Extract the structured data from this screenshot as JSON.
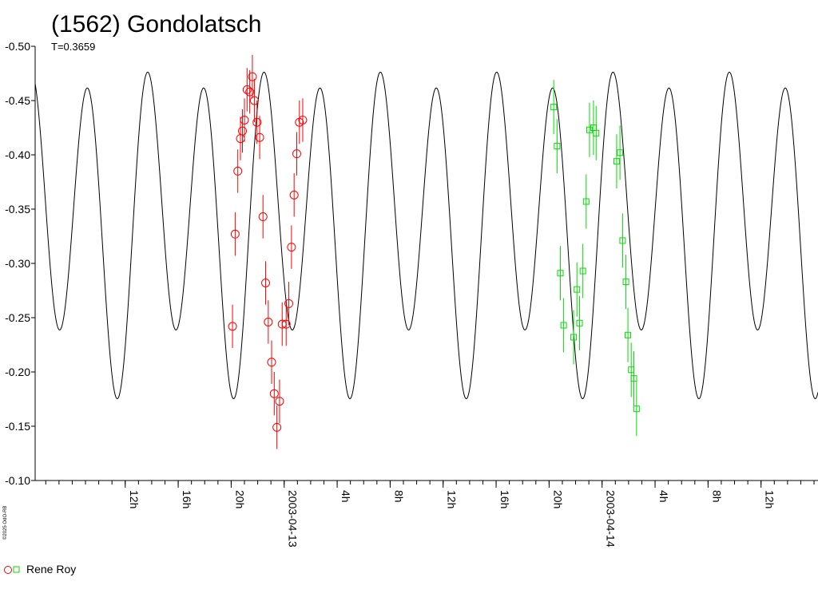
{
  "chart_data": {
    "type": "scatter",
    "title": "(1562) Gondolatsch",
    "subtitle": "T=0.3659",
    "side_label": "©2025 OdO-RB",
    "ylim": [
      -0.5,
      -0.1
    ],
    "y_ticks": [
      "-0.50",
      "-0.45",
      "-0.40",
      "-0.35",
      "-0.30",
      "-0.25",
      "-0.20",
      "-0.15",
      "-0.10"
    ],
    "y_tick_values": [
      -0.5,
      -0.45,
      -0.4,
      -0.35,
      -0.3,
      -0.25,
      -0.2,
      -0.15,
      -0.1
    ],
    "x_range_hours": [
      5.2,
      64.3
    ],
    "x_ticks": [
      {
        "h": 12,
        "label": "12h"
      },
      {
        "h": 16,
        "label": "16h"
      },
      {
        "h": 20,
        "label": "20h"
      },
      {
        "h": 24,
        "label": "2003-04-13"
      },
      {
        "h": 28,
        "label": "4h"
      },
      {
        "h": 32,
        "label": "8h"
      },
      {
        "h": 36,
        "label": "12h"
      },
      {
        "h": 40,
        "label": "16h"
      },
      {
        "h": 44,
        "label": "20h"
      },
      {
        "h": 48,
        "label": "2003-04-14"
      },
      {
        "h": 52,
        "label": "4h"
      },
      {
        "h": 56,
        "label": "8h"
      },
      {
        "h": 60,
        "label": "12h"
      }
    ],
    "period_hours": 8.782,
    "model": {
      "name": "fit",
      "mean": -0.3375,
      "a1": 0.0325,
      "phi1": -1.66,
      "a2": 0.1305,
      "phi2": 2.51,
      "color": "#000000"
    },
    "series": [
      {
        "name": "Rene Roy",
        "marker": "circle",
        "color": "#ff0000",
        "points": [
          {
            "x": 20.1,
            "y": -0.242,
            "e": 0.02
          },
          {
            "x": 20.3,
            "y": -0.327,
            "e": 0.02
          },
          {
            "x": 20.5,
            "y": -0.385,
            "e": 0.02
          },
          {
            "x": 20.7,
            "y": -0.415,
            "e": 0.02
          },
          {
            "x": 20.85,
            "y": -0.422,
            "e": 0.02
          },
          {
            "x": 21.0,
            "y": -0.432,
            "e": 0.02
          },
          {
            "x": 21.2,
            "y": -0.46,
            "e": 0.02
          },
          {
            "x": 21.4,
            "y": -0.458,
            "e": 0.02
          },
          {
            "x": 21.6,
            "y": -0.472,
            "e": 0.02
          },
          {
            "x": 21.75,
            "y": -0.45,
            "e": 0.02
          },
          {
            "x": 21.95,
            "y": -0.43,
            "e": 0.02
          },
          {
            "x": 22.15,
            "y": -0.416,
            "e": 0.02
          },
          {
            "x": 22.4,
            "y": -0.343,
            "e": 0.02
          },
          {
            "x": 22.6,
            "y": -0.282,
            "e": 0.02
          },
          {
            "x": 22.8,
            "y": -0.246,
            "e": 0.02
          },
          {
            "x": 23.05,
            "y": -0.209,
            "e": 0.02
          },
          {
            "x": 23.25,
            "y": -0.18,
            "e": 0.02
          },
          {
            "x": 23.45,
            "y": -0.149,
            "e": 0.02
          },
          {
            "x": 23.65,
            "y": -0.173,
            "e": 0.02
          },
          {
            "x": 23.85,
            "y": -0.244,
            "e": 0.02
          },
          {
            "x": 24.15,
            "y": -0.244,
            "e": 0.02
          },
          {
            "x": 24.35,
            "y": -0.263,
            "e": 0.02
          },
          {
            "x": 24.55,
            "y": -0.315,
            "e": 0.02
          },
          {
            "x": 24.75,
            "y": -0.363,
            "e": 0.02
          },
          {
            "x": 24.95,
            "y": -0.401,
            "e": 0.02
          },
          {
            "x": 25.15,
            "y": -0.43,
            "e": 0.02
          },
          {
            "x": 25.4,
            "y": -0.432,
            "e": 0.02
          }
        ]
      },
      {
        "name": "",
        "marker": "square",
        "color": "#00dd00",
        "points": [
          {
            "x": 44.35,
            "y": -0.444,
            "e": 0.025
          },
          {
            "x": 44.6,
            "y": -0.408,
            "e": 0.025
          },
          {
            "x": 44.85,
            "y": -0.291,
            "e": 0.025
          },
          {
            "x": 45.1,
            "y": -0.243,
            "e": 0.025
          },
          {
            "x": 45.85,
            "y": -0.232,
            "e": 0.025
          },
          {
            "x": 46.1,
            "y": -0.276,
            "e": 0.025
          },
          {
            "x": 46.3,
            "y": -0.245,
            "e": 0.025
          },
          {
            "x": 46.55,
            "y": -0.293,
            "e": 0.025
          },
          {
            "x": 46.8,
            "y": -0.357,
            "e": 0.025
          },
          {
            "x": 47.05,
            "y": -0.423,
            "e": 0.025
          },
          {
            "x": 47.35,
            "y": -0.425,
            "e": 0.025
          },
          {
            "x": 47.55,
            "y": -0.42,
            "e": 0.025
          },
          {
            "x": 49.1,
            "y": -0.394,
            "e": 0.025
          },
          {
            "x": 49.35,
            "y": -0.402,
            "e": 0.025
          },
          {
            "x": 49.55,
            "y": -0.321,
            "e": 0.025
          },
          {
            "x": 49.8,
            "y": -0.283,
            "e": 0.025
          },
          {
            "x": 49.95,
            "y": -0.234,
            "e": 0.025
          },
          {
            "x": 50.2,
            "y": -0.202,
            "e": 0.025
          },
          {
            "x": 50.4,
            "y": -0.194,
            "e": 0.025
          },
          {
            "x": 50.6,
            "y": -0.166,
            "e": 0.025
          }
        ]
      }
    ],
    "legend": {
      "placement": "bottom-left",
      "label": "Rene Roy"
    },
    "grid": false
  }
}
